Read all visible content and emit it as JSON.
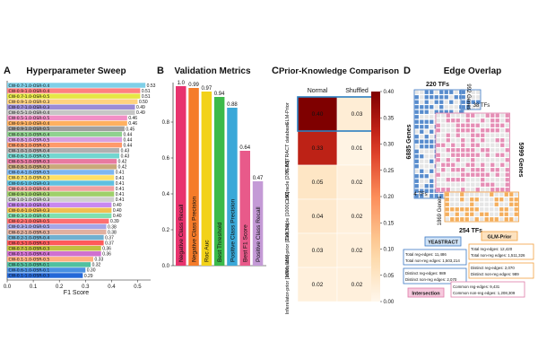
{
  "chart_data": [
    {
      "panel": "A",
      "type": "bar",
      "orientation": "horizontal",
      "title": "Hyperparameter Sweep",
      "xlabel": "F1 Score",
      "xlim": [
        0.0,
        0.55
      ],
      "xticks": [
        "0.0",
        "0.1",
        "0.2",
        "0.3",
        "0.4",
        "0.5"
      ],
      "categories": [
        "CW-0.7-1.0-OSR-0.4",
        "CW-0.9-1.0-OSR-0.4",
        "CW-0.7-1.0-OSR-0.5",
        "CW-0.9-1.0-OSR-0.3",
        "CW-0.7-1.0-OSR-0.3",
        "CW-0.5-1.0-OSR-0.4",
        "CW-0.5-1.0-OSR-0.5",
        "CW-0.9-1.0-OSR-0.4",
        "CW-0.9-1.0-OSR-0.5",
        "CW-0.8-1.0-OSR-0.4",
        "CW-0.8-1.0-OSR-0.5",
        "CW-0.8-1.0-OSR-0.3",
        "CW-1.0-1.0-OSR-0.4",
        "CW-0.6-1.0-OSR-0.5",
        "CW-0.5-1.0-OSR-0.3",
        "CW-0.8-1.0-OSR-0.3",
        "CW-0.4-1.0-OSR-0.5",
        "CW-0.7-1.0-OSR-0.3",
        "CW-0.6-1.0-OSR-0.3",
        "CW-0.4-1.0-OSR-0.4",
        "CW-0.9-1.0-OSR-0.3",
        "CW-1.0-1.0-OSR-0.3",
        "CW-0.9-1.0-OSR-0.4",
        "CW-0.4-1.0-OSR-0.3",
        "CW-0.3-1.0-OSR-0.4",
        "CW-0.2-1.0-OSR-0.5",
        "CW-0.3-1.0-OSR-0.5",
        "CW-0.2-1.0-OSR-0.3",
        "CW-0.2-1.0-OSR-0.4",
        "CW-0.3-1.0-OSR-0.3",
        "CW-0.7-1.0-OSR-0.3",
        "CW-0.1-1.0-OSR-0.4",
        "CW-0.1-1.0-OSR-0.5",
        "CW-0.5-1.0-OSR-0.1",
        "CW-0.6-1.0-OSR-0.1",
        "CW-0.1-1.0-OSR-0.3"
      ],
      "values": [
        0.53,
        0.51,
        0.51,
        0.5,
        0.49,
        0.49,
        0.46,
        0.46,
        0.45,
        0.44,
        0.44,
        0.44,
        0.43,
        0.43,
        0.42,
        0.42,
        0.41,
        0.41,
        0.41,
        0.41,
        0.41,
        0.41,
        0.4,
        0.4,
        0.4,
        0.39,
        0.38,
        0.38,
        0.37,
        0.37,
        0.36,
        0.36,
        0.33,
        0.32,
        0.3,
        0.29
      ],
      "value_labels": [
        "0.53",
        "0.51",
        "0.51",
        "0.50",
        "0.49",
        "0.49",
        "0.46",
        "0.46",
        "0.45",
        "0.44",
        "0.44",
        "0.44",
        "0.43",
        "0.43",
        "0.42",
        "0.42",
        "0.41",
        "0.41",
        "0.41",
        "0.41",
        "0.41",
        "0.41",
        "0.40",
        "0.40",
        "0.40",
        "0.39",
        "0.38",
        "0.38",
        "0.37",
        "0.37",
        "0.36",
        "0.36",
        "0.33",
        "0.32",
        "0.30",
        "0.29"
      ],
      "colors": [
        "#7fd0e8",
        "#ff8080",
        "#e6e645",
        "#ffd27f",
        "#9b8cd6",
        "#c6c6c6",
        "#f28fc6",
        "#ffb060",
        "#a0a0a0",
        "#8fd18f",
        "#d9a0e0",
        "#ff9a6a",
        "#b0b0b0",
        "#72d6d0",
        "#e87aa0",
        "#c9a87a",
        "#7db7f0",
        "#ffe066",
        "#60c0e0",
        "#f2a0a0",
        "#9fd06a",
        "#d0d0d0",
        "#c888f0",
        "#f0c050",
        "#7fe0b0",
        "#ff7070",
        "#a6a6e6",
        "#e0b0a0",
        "#70b0d0",
        "#ff5a5a",
        "#c0c040",
        "#d070d0",
        "#ffb080",
        "#50c0a0",
        "#4a90e2",
        "#2468d8"
      ]
    },
    {
      "panel": "B",
      "type": "bar",
      "title": "Validation Metrics",
      "ylim": [
        0.0,
        1.0
      ],
      "yticks": [
        "0.0",
        "0.2",
        "0.4",
        "0.6",
        "0.8"
      ],
      "categories": [
        "Negative Class Recall",
        "Negative Class Precision",
        "Roc Auc",
        "Best Threshold",
        "Positive Class Precision",
        "Best F1 Score",
        "Positive Class Recall"
      ],
      "values": [
        1.0,
        0.99,
        0.97,
        0.94,
        0.88,
        0.64,
        0.47
      ],
      "value_labels": [
        "1.0",
        "0.99",
        "0.97",
        "0.94",
        "0.88",
        "0.64",
        "0.47"
      ],
      "colors": [
        "#e8336e",
        "#f57c2a",
        "#f2d21a",
        "#3cba4a",
        "#3aa8d8",
        "#e85a8a",
        "#c49ad6"
      ]
    },
    {
      "panel": "C",
      "type": "heatmap",
      "title": "Prior-Knowledge Comparison",
      "columns": [
        "Normal",
        "Shuffled"
      ],
      "rows": [
        "GLM-Prior",
        "YEASTRACT database",
        "CellOracle [200, 50]",
        "CellOracle [1000, 150]",
        "Inferelator-prior [200, 50]",
        "Inferelator-prior [1000, 150]"
      ],
      "values": [
        [
          0.4,
          0.03
        ],
        [
          0.33,
          0.01
        ],
        [
          0.05,
          0.02
        ],
        [
          0.04,
          0.02
        ],
        [
          0.03,
          0.02
        ],
        [
          0.02,
          0.02
        ]
      ],
      "value_labels": [
        [
          "0.40",
          "0.03"
        ],
        [
          "0.33",
          "0.01"
        ],
        [
          "0.05",
          "0.02"
        ],
        [
          "0.04",
          "0.02"
        ],
        [
          "0.03",
          "0.02"
        ],
        [
          "0.02",
          "0.02"
        ]
      ],
      "colorbar_range": [
        0.0,
        0.4
      ],
      "colorbar_ticks": [
        "0.40",
        "0.35",
        "0.30",
        "0.25",
        "0.20",
        "0.15",
        "0.10",
        "0.05",
        "0.00"
      ]
    }
  ],
  "panels": {
    "A": {
      "letter": "A"
    },
    "B": {
      "letter": "B"
    },
    "C": {
      "letter": "C"
    },
    "D": {
      "letter": "D",
      "title": "Edge Overlap",
      "labels": {
        "top_tfs": "220 TFs",
        "left_genes": "6885 Genes",
        "top_right_genes": "992 Genes",
        "small_tfs": "38 TFs",
        "right_genes": "5999 Genes",
        "inner_tfs": "4 TFs",
        "bottom_genes": "1869 Genes",
        "bottom_tfs": "254 TFs"
      },
      "yeastract": {
        "label": "YEASTRACT",
        "stats": [
          "Total reg-edges: 11,486",
          "Total non-reg edges: 1,503,214"
        ],
        "distinct": [
          "Distinct reg-edges: 989",
          "Distinct non-reg edges: 2,070"
        ]
      },
      "glm_prior": {
        "label": "GLM-Prior",
        "stats": [
          "Total reg-edges: 12,420",
          "Total non-reg edges: 1,511,326"
        ],
        "distinct": [
          "Distinct reg-edges: 2,070",
          "Distinct non-reg edges: 989"
        ]
      },
      "intersection": {
        "label": "Intersection",
        "stats": [
          "Common reg-edges: 9,431",
          "Common non-reg edges: 1,208,309"
        ]
      },
      "colors": {
        "blue": "#3b78c4",
        "pink": "#e07aa8",
        "orange": "#f2a040",
        "gray": "#c8c8c8"
      }
    }
  }
}
